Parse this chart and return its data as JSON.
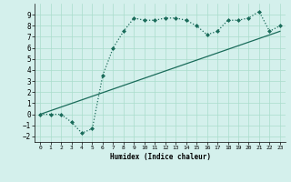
{
  "curve1_x": [
    0,
    1,
    2,
    3,
    4,
    5,
    6,
    7,
    8,
    9,
    10,
    11,
    12,
    13,
    14,
    15,
    16,
    17,
    18,
    19,
    20,
    21,
    22,
    23
  ],
  "curve1_y": [
    0,
    0,
    0,
    -0.7,
    -1.7,
    -1.3,
    3.5,
    6.0,
    7.5,
    8.7,
    8.5,
    8.5,
    8.7,
    8.7,
    8.5,
    8.0,
    7.2,
    7.5,
    8.5,
    8.5,
    8.7,
    9.3,
    7.5,
    8.0
  ],
  "curve2_x": [
    0,
    23
  ],
  "curve2_y": [
    0,
    7.5
  ],
  "line_color": "#1a6b5a",
  "bg_color": "#d4f0ec",
  "grid_color": "#aaddcc",
  "xlabel": "Humidex (Indice chaleur)",
  "xlim": [
    -0.5,
    23.5
  ],
  "ylim": [
    -2.5,
    10
  ],
  "xticks": [
    0,
    1,
    2,
    3,
    4,
    5,
    6,
    7,
    8,
    9,
    10,
    11,
    12,
    13,
    14,
    15,
    16,
    17,
    18,
    19,
    20,
    21,
    22,
    23
  ],
  "yticks": [
    -2,
    -1,
    0,
    1,
    2,
    3,
    4,
    5,
    6,
    7,
    8,
    9
  ]
}
